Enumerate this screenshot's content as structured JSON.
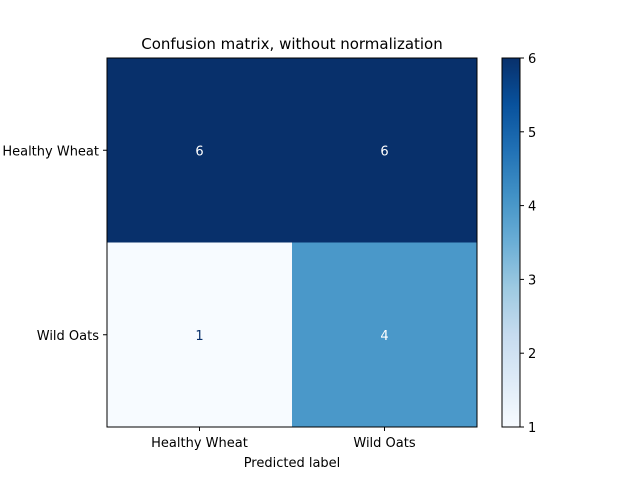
{
  "chart_data": {
    "type": "heatmap",
    "title": "Confusion matrix, without normalization",
    "xlabel": "Predicted label",
    "ylabel": "",
    "x_categories": [
      "Healthy Wheat",
      "Wild Oats"
    ],
    "y_categories": [
      "Healthy Wheat",
      "Wild Oats"
    ],
    "values": [
      [
        6,
        6
      ],
      [
        1,
        4
      ]
    ],
    "colormap": "Blues",
    "vmin": 1,
    "vmax": 6,
    "colorbar_ticks": [
      "1",
      "2",
      "3",
      "4",
      "5",
      "6"
    ],
    "colors": {
      "low": "#f7fbff",
      "high": "#08306b",
      "text_on_dark": "#ffffff",
      "text_on_light": "#08306b"
    }
  }
}
